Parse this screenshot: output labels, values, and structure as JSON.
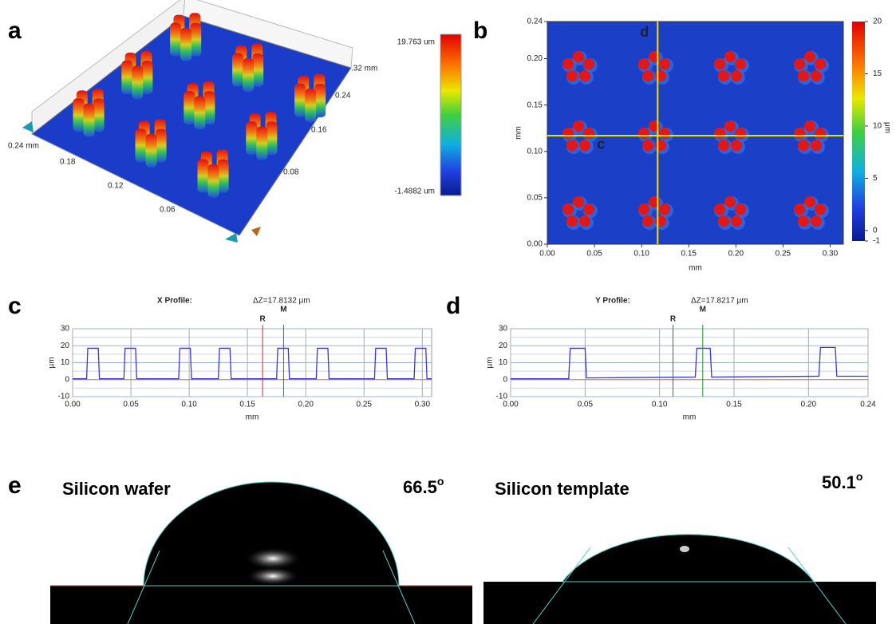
{
  "panel_a": {
    "label": "a",
    "colorbar_max": "19.763 um",
    "colorbar_min": "-1.4882 um",
    "axis_labels": [
      "0.24 mm",
      "0.18",
      "0.12",
      "0.06",
      "0.24",
      "0.16",
      "0.08",
      ".32 mm"
    ]
  },
  "chart_data": [
    {
      "type": "map",
      "label": "b",
      "xlabel": "mm",
      "ylabel": "mm",
      "colorbar_label": "μm",
      "xlim": [
        0,
        0.314
      ],
      "ylim": [
        0,
        0.24
      ],
      "xticks": [
        {
          "value": 0,
          "label": "0.00"
        },
        0.05,
        {
          "value": 0.1,
          "label": "0.10"
        },
        0.15,
        {
          "value": 0.2,
          "label": "0.20"
        },
        0.25,
        {
          "value": 0.3,
          "label": "0.30"
        }
      ],
      "yticks": [
        {
          "value": 0,
          "label": "0.00"
        },
        0.05,
        {
          "value": 0.1,
          "label": "0.10"
        },
        0.15,
        {
          "value": 0.2,
          "label": "0.20"
        },
        0.24
      ],
      "clim": [
        -1,
        20
      ],
      "cticks": [
        -1,
        0,
        5,
        10,
        15,
        20
      ],
      "crosshair_x": 0.117,
      "crosshair_y": 0.117,
      "annotations": [
        "c",
        "d"
      ]
    },
    {
      "type": "profile",
      "label": "c",
      "title": "X Profile:",
      "annotation": "ΔZ=17.8132 µm",
      "xlabel": "mm",
      "ylabel": "µm",
      "xlim": [
        0,
        0.308
      ],
      "ylim": [
        -10,
        30
      ],
      "xticks": [
        {
          "value": 0,
          "label": "0.00"
        },
        0.05,
        {
          "value": 0.1,
          "label": "0.10"
        },
        0.15,
        {
          "value": 0.2,
          "label": "0.20"
        },
        0.25,
        {
          "value": 0.3,
          "label": "0.30"
        }
      ],
      "yticks": [
        -10,
        0,
        10,
        20,
        30
      ],
      "markers": [
        {
          "label": "R",
          "x": 0.163,
          "color": "#e02020"
        },
        {
          "label": "M",
          "x": 0.181,
          "color": "#2a8a2a"
        }
      ],
      "color": "#3a3ad0",
      "x": [
        0,
        0.012,
        0.013,
        0.022,
        0.023,
        0.044,
        0.045,
        0.054,
        0.055,
        0.091,
        0.092,
        0.101,
        0.102,
        0.125,
        0.126,
        0.135,
        0.136,
        0.175,
        0.176,
        0.185,
        0.186,
        0.209,
        0.21,
        0.219,
        0.22,
        0.259,
        0.26,
        0.269,
        0.27,
        0.293,
        0.294,
        0.303,
        0.304,
        0.308
      ],
      "values": [
        0.5,
        0.5,
        18.5,
        18.5,
        0.5,
        0.5,
        18.5,
        18.5,
        0.5,
        0.5,
        18.5,
        18.5,
        0.5,
        0.5,
        18.5,
        18.5,
        0.5,
        0.5,
        18.5,
        18.5,
        0.5,
        0.5,
        18.5,
        18.5,
        0.5,
        0.5,
        18.5,
        18.5,
        0.5,
        0.5,
        18.5,
        18.5,
        0.5,
        0.5
      ]
    },
    {
      "type": "profile",
      "label": "d",
      "title": "Y Profile:",
      "annotation": "ΔZ=17.8217 µm",
      "xlabel": "mm",
      "ylabel": "µm",
      "xlim": [
        0,
        0.24
      ],
      "ylim": [
        -10,
        30
      ],
      "xticks": [
        {
          "value": 0,
          "label": "0.00"
        },
        0.05,
        {
          "value": 0.1,
          "label": "0.10"
        },
        0.15,
        {
          "value": 0.2,
          "label": "0.20"
        },
        0.24
      ],
      "yticks": [
        -10,
        0,
        10,
        20,
        30
      ],
      "markers": [
        {
          "label": "R",
          "x": 0.109,
          "color": "#e02020"
        },
        {
          "label": "M",
          "x": 0.129,
          "color": "#2a8a2a"
        }
      ],
      "color": "#3a3ad0",
      "x": [
        0,
        0.039,
        0.04,
        0.05,
        0.051,
        0.124,
        0.125,
        0.134,
        0.135,
        0.207,
        0.208,
        0.218,
        0.219,
        0.24
      ],
      "values": [
        0.5,
        0.5,
        18.5,
        18.5,
        1,
        1.5,
        18.5,
        18.5,
        1.5,
        2,
        19,
        19,
        2,
        2
      ]
    }
  ],
  "panel_e": {
    "label": "e",
    "images": [
      {
        "title": "Silicon wafer",
        "angle": "66.5",
        "unit": "o"
      },
      {
        "title": "Silicon template",
        "angle": "50.1",
        "unit": "o"
      }
    ]
  }
}
